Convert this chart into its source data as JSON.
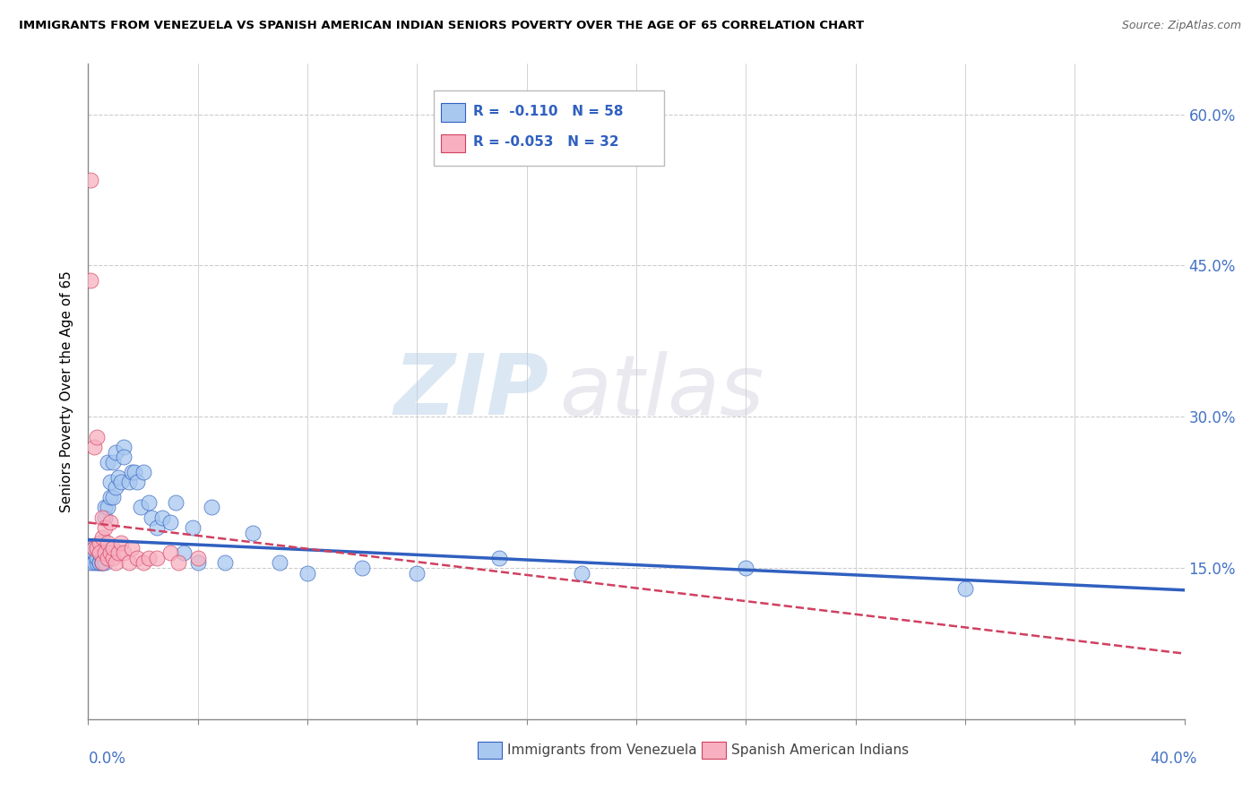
{
  "title": "IMMIGRANTS FROM VENEZUELA VS SPANISH AMERICAN INDIAN SENIORS POVERTY OVER THE AGE OF 65 CORRELATION CHART",
  "source": "Source: ZipAtlas.com",
  "ylabel": "Seniors Poverty Over the Age of 65",
  "y_tick_labels": [
    "15.0%",
    "30.0%",
    "45.0%",
    "60.0%"
  ],
  "y_tick_values": [
    0.15,
    0.3,
    0.45,
    0.6
  ],
  "xlim": [
    0.0,
    0.4
  ],
  "ylim": [
    0.0,
    0.65
  ],
  "legend_r1": "R =  -0.110",
  "legend_n1": "N = 58",
  "legend_r2": "R = -0.053",
  "legend_n2": "N = 32",
  "blue_color": "#A8C8F0",
  "pink_color": "#F8B0C0",
  "trend_blue": "#3060C0",
  "trend_pink": "#D04060",
  "watermark_zip": "ZIP",
  "watermark_atlas": "atlas",
  "blue_x": [
    0.001,
    0.001,
    0.002,
    0.002,
    0.002,
    0.003,
    0.003,
    0.003,
    0.004,
    0.004,
    0.004,
    0.005,
    0.005,
    0.005,
    0.005,
    0.006,
    0.006,
    0.006,
    0.007,
    0.007,
    0.007,
    0.008,
    0.008,
    0.008,
    0.009,
    0.009,
    0.01,
    0.01,
    0.011,
    0.012,
    0.013,
    0.013,
    0.015,
    0.016,
    0.017,
    0.018,
    0.019,
    0.02,
    0.022,
    0.023,
    0.025,
    0.027,
    0.03,
    0.032,
    0.035,
    0.038,
    0.04,
    0.045,
    0.05,
    0.06,
    0.07,
    0.08,
    0.1,
    0.12,
    0.15,
    0.18,
    0.24,
    0.32
  ],
  "blue_y": [
    0.17,
    0.155,
    0.165,
    0.155,
    0.17,
    0.155,
    0.16,
    0.17,
    0.155,
    0.165,
    0.155,
    0.16,
    0.155,
    0.165,
    0.155,
    0.21,
    0.2,
    0.155,
    0.255,
    0.21,
    0.165,
    0.235,
    0.22,
    0.165,
    0.255,
    0.22,
    0.23,
    0.265,
    0.24,
    0.235,
    0.27,
    0.26,
    0.235,
    0.245,
    0.245,
    0.235,
    0.21,
    0.245,
    0.215,
    0.2,
    0.19,
    0.2,
    0.195,
    0.215,
    0.165,
    0.19,
    0.155,
    0.21,
    0.155,
    0.185,
    0.155,
    0.145,
    0.15,
    0.145,
    0.16,
    0.145,
    0.15,
    0.13
  ],
  "pink_x": [
    0.001,
    0.001,
    0.002,
    0.002,
    0.003,
    0.003,
    0.004,
    0.004,
    0.005,
    0.005,
    0.005,
    0.006,
    0.006,
    0.007,
    0.007,
    0.008,
    0.008,
    0.009,
    0.009,
    0.01,
    0.011,
    0.012,
    0.013,
    0.015,
    0.016,
    0.018,
    0.02,
    0.022,
    0.025,
    0.03,
    0.033,
    0.04
  ],
  "pink_y": [
    0.535,
    0.435,
    0.27,
    0.17,
    0.28,
    0.17,
    0.175,
    0.165,
    0.2,
    0.18,
    0.155,
    0.19,
    0.165,
    0.175,
    0.16,
    0.195,
    0.165,
    0.16,
    0.17,
    0.155,
    0.165,
    0.175,
    0.165,
    0.155,
    0.17,
    0.16,
    0.155,
    0.16,
    0.16,
    0.165,
    0.155,
    0.16
  ],
  "blue_trend_x0": 0.0,
  "blue_trend_y0": 0.178,
  "blue_trend_x1": 0.4,
  "blue_trend_y1": 0.128,
  "pink_trend_x0": 0.0,
  "pink_trend_y0": 0.195,
  "pink_trend_x1": 0.4,
  "pink_trend_y1": 0.065
}
